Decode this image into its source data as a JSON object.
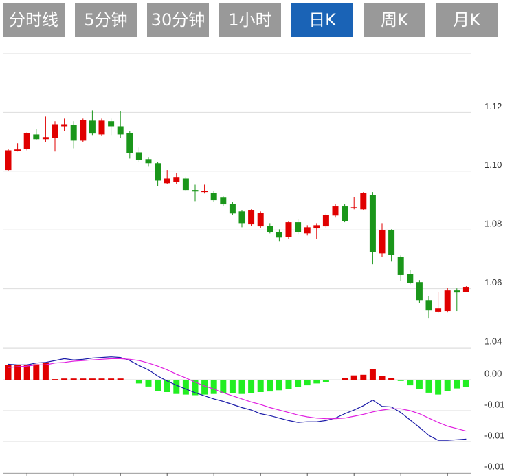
{
  "tabs": {
    "items": [
      "分时线",
      "5分钟",
      "30分钟",
      "1小时",
      "日K",
      "周K",
      "月K"
    ],
    "active": 4
  },
  "chart_data": [
    {
      "type": "candlestick",
      "up_color": "#e00000",
      "down_color": "#1a961a",
      "open": [
        1.1004,
        1.1069,
        1.1076,
        1.1125,
        1.1109,
        1.1113,
        1.1153,
        1.1158,
        1.1104,
        1.1172,
        1.1125,
        1.117,
        1.1153,
        1.113,
        1.1064,
        1.1041,
        1.1027,
        1.0959,
        1.0964,
        1.0975,
        1.0936,
        1.0929,
        1.0926,
        1.091,
        1.0889,
        1.0863,
        1.0819,
        1.0812,
        1.0814,
        1.0793,
        1.0777,
        1.0826,
        1.0788,
        1.0805,
        1.0812,
        1.0849,
        1.088,
        1.0873,
        1.087,
        1.0919,
        1.072,
        1.08,
        1.0709,
        1.065,
        1.0622,
        1.0561,
        1.0522,
        1.0524,
        1.0594,
        1.0589
      ],
      "high": [
        1.1076,
        1.1095,
        1.1132,
        1.1144,
        1.1186,
        1.117,
        1.1179,
        1.117,
        1.1179,
        1.1207,
        1.1179,
        1.1179,
        1.1205,
        1.1137,
        1.1081,
        1.1048,
        1.1032,
        1.1004,
        1.0994,
        1.098,
        1.0954,
        1.0954,
        1.0933,
        1.0915,
        1.0896,
        1.0868,
        1.087,
        1.0863,
        1.0823,
        1.0802,
        1.083,
        1.0837,
        1.0816,
        1.0823,
        1.0856,
        1.0887,
        1.0887,
        1.0912,
        1.0929,
        1.0929,
        1.0823,
        1.0802,
        1.0713,
        1.0664,
        1.0629,
        1.0575,
        1.0589,
        1.0603,
        1.0601,
        1.0608
      ],
      "low": [
        1.1001,
        1.1067,
        1.1071,
        1.1107,
        1.1099,
        1.1067,
        1.1137,
        1.1078,
        1.1099,
        1.1123,
        1.1121,
        1.1123,
        1.1113,
        1.1043,
        1.1032,
        1.1015,
        1.095,
        1.0955,
        1.0957,
        1.0933,
        1.0898,
        1.0924,
        1.0896,
        1.088,
        1.0852,
        1.0809,
        1.0814,
        1.0807,
        1.0788,
        1.076,
        1.077,
        1.0786,
        1.0781,
        1.077,
        1.0807,
        1.0842,
        1.0826,
        1.087,
        1.0866,
        1.0683,
        1.0709,
        1.0692,
        1.0627,
        1.0615,
        1.0552,
        1.0498,
        1.0517,
        1.0519,
        1.0524,
        1.0589
      ],
      "close": [
        1.1071,
        1.1074,
        1.113,
        1.1109,
        1.1116,
        1.116,
        1.116,
        1.1104,
        1.1174,
        1.1128,
        1.1172,
        1.1153,
        1.1125,
        1.1062,
        1.1039,
        1.1027,
        1.0968,
        1.0975,
        1.0978,
        1.0936,
        1.0931,
        1.0933,
        1.0901,
        1.0887,
        1.0856,
        1.0823,
        1.0866,
        1.0858,
        1.0793,
        1.0774,
        1.0826,
        1.0793,
        1.0809,
        1.0816,
        1.0851,
        1.088,
        1.083,
        1.0877,
        1.0926,
        1.0725,
        1.08,
        1.0716,
        1.0646,
        1.062,
        1.0561,
        1.0526,
        1.0533,
        1.0594,
        1.0587,
        1.0606
      ],
      "ylim": [
        1.04,
        1.14
      ],
      "yticks": [
        1.04,
        1.06,
        1.08,
        {
          "value": 1.1,
          "label": "1.10"
        },
        1.12
      ],
      "grid": true
    },
    {
      "type": "macd",
      "up_color": "#e00000",
      "down_color": "#22ee22",
      "series": [
        {
          "type": "bar",
          "values": [
            0.0024,
            0.0024,
            0.0024,
            0.0025,
            0.0028,
            0.0001,
            0.0002,
            0.0002,
            0.0002,
            0.0002,
            0.0002,
            0.0002,
            0.0002,
            -0.0001,
            -0.0006,
            -0.0011,
            -0.0018,
            -0.002,
            -0.0023,
            -0.0024,
            -0.0025,
            -0.0024,
            -0.0023,
            -0.0022,
            -0.0022,
            -0.0023,
            -0.0022,
            -0.002,
            -0.0019,
            -0.0017,
            -0.0015,
            -0.0012,
            -0.0009,
            -0.0006,
            -0.0004,
            -0.0001,
            0.0003,
            0.0007,
            0.0008,
            0.0017,
            0.0006,
            0.0003,
            -0.0002,
            -0.0009,
            -0.0015,
            -0.0021,
            -0.0024,
            -0.0018,
            -0.0014,
            -0.0012
          ]
        },
        {
          "type": "line",
          "color": "#1a1aa8",
          "values": [
            0.0025,
            0.0024,
            0.0024,
            0.0027,
            0.0028,
            0.0031,
            0.0034,
            0.0032,
            0.0033,
            0.0035,
            0.0036,
            0.0037,
            0.0036,
            0.0031,
            0.0023,
            0.0016,
            0.0006,
            -0.0002,
            -0.0009,
            -0.0015,
            -0.0021,
            -0.0026,
            -0.0031,
            -0.0035,
            -0.004,
            -0.0045,
            -0.0049,
            -0.0055,
            -0.0058,
            -0.0062,
            -0.0066,
            -0.0069,
            -0.0068,
            -0.0068,
            -0.0066,
            -0.0062,
            -0.0055,
            -0.0049,
            -0.0042,
            -0.0033,
            -0.0043,
            -0.0044,
            -0.0053,
            -0.0065,
            -0.0077,
            -0.009,
            -0.0098,
            -0.0098,
            -0.0097,
            -0.0096
          ]
        },
        {
          "type": "line",
          "color": "#e020e0",
          "values": [
            0.002,
            0.0021,
            0.0022,
            0.0024,
            0.0024,
            0.0027,
            0.0028,
            0.003,
            0.0031,
            0.0032,
            0.0033,
            0.0034,
            0.0034,
            0.0033,
            0.0031,
            0.0027,
            0.0022,
            0.0016,
            0.0009,
            0.0003,
            -0.0004,
            -0.001,
            -0.0015,
            -0.0021,
            -0.0026,
            -0.0031,
            -0.0036,
            -0.004,
            -0.0045,
            -0.0049,
            -0.0053,
            -0.0057,
            -0.006,
            -0.0062,
            -0.0063,
            -0.0063,
            -0.0062,
            -0.0059,
            -0.0056,
            -0.0052,
            -0.0049,
            -0.0047,
            -0.0047,
            -0.005,
            -0.0055,
            -0.0062,
            -0.0069,
            -0.0075,
            -0.0079,
            -0.0083
          ]
        }
      ],
      "ylim": [
        -0.015,
        0.005
      ],
      "yticks": [
        {
          "value": 0,
          "label": "0.00"
        },
        {
          "value": -0.005,
          "label": "-0.01"
        },
        {
          "value": -0.01,
          "label": "-0.01"
        },
        {
          "value": -0.015,
          "label": "-0.01"
        }
      ],
      "grid": true
    }
  ]
}
